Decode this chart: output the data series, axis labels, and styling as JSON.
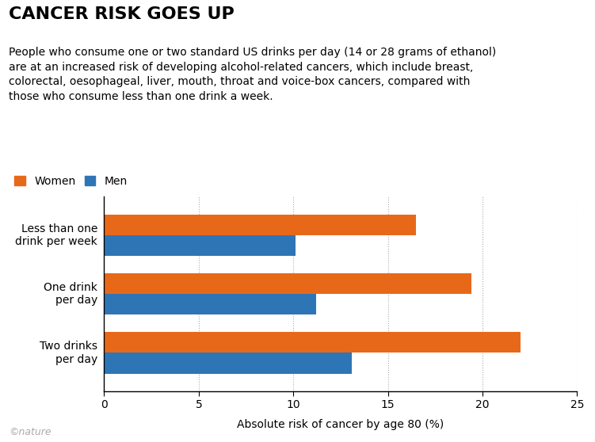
{
  "title": "CANCER RISK GOES UP",
  "subtitle": "People who consume one or two standard US drinks per day (14 or 28 grams of ethanol)\nare at an increased risk of developing alcohol-related cancers, which include breast,\ncolorectal, oesophageal, liver, mouth, throat and voice-box cancers, compared with\nthose who consume less than one drink a week.",
  "categories": [
    "Less than one\ndrink per week",
    "One drink\nper day",
    "Two drinks\nper day"
  ],
  "women_values": [
    16.5,
    19.4,
    22.0
  ],
  "men_values": [
    10.1,
    11.2,
    13.1
  ],
  "women_color": "#E8681A",
  "men_color": "#2E75B6",
  "xlabel": "Absolute risk of cancer by age 80 (%)",
  "xlim": [
    0,
    25
  ],
  "xticks": [
    0,
    5,
    10,
    15,
    20,
    25
  ],
  "legend_labels": [
    "Women",
    "Men"
  ],
  "bar_height": 0.35,
  "background_color": "#ffffff",
  "title_fontsize": 16,
  "subtitle_fontsize": 10,
  "axis_fontsize": 10,
  "tick_fontsize": 10,
  "copyright_text": "©nature"
}
